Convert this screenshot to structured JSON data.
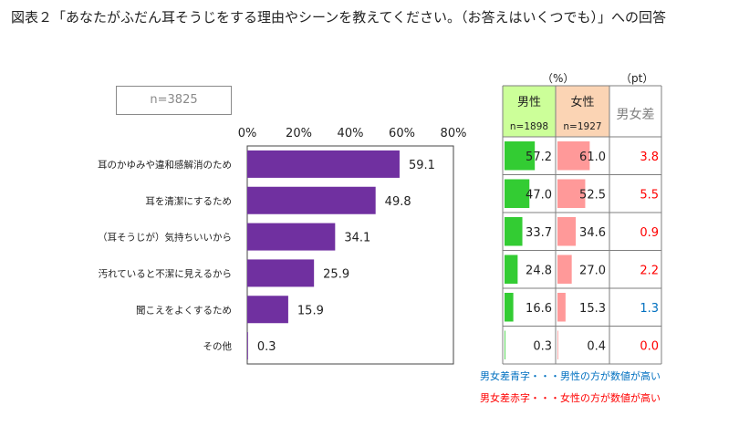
{
  "page_title": "図表２「あなたがふだん耳そうじをする理由やシーンを教えてください。（お答えはいくつでも）」への回答",
  "sample_size": "n=3825",
  "colors": {
    "bar": "#7030a0",
    "male_header": "#ccff99",
    "female_header": "#fbd4b4",
    "male_bar": "#33cc33",
    "female_bar": "#ff9999",
    "diff_red": "#ff0000",
    "diff_blue": "#0070c0"
  },
  "chart_data": {
    "type": "bar",
    "orientation": "horizontal",
    "categories": [
      "耳のかゆみや違和感解消のため",
      "耳を清潔にするため",
      "（耳そうじが）気持ちいいから",
      "汚れていると不潔に見えるから",
      "聞こえをよくするため",
      "その他"
    ],
    "values": [
      59.1,
      49.8,
      34.1,
      25.9,
      15.9,
      0.3
    ],
    "xlim": [
      0,
      80
    ],
    "ticks": [
      "0%",
      "20%",
      "40%",
      "60%",
      "80%"
    ],
    "tick_values": [
      0,
      20,
      40,
      60,
      80
    ]
  },
  "table": {
    "unit_pct": "（%）",
    "unit_pt": "（pt）",
    "male_label": "男性",
    "female_label": "女性",
    "diff_label": "男女差",
    "male_n": "n=1898",
    "female_n": "n=1927",
    "rows": [
      {
        "male": 57.2,
        "female": 61.0,
        "male_text": "57.2",
        "female_text": "61.0",
        "diff_text": "3.8",
        "diff_color": "red"
      },
      {
        "male": 47.0,
        "female": 52.5,
        "male_text": "47.0",
        "female_text": "52.5",
        "diff_text": "5.5",
        "diff_color": "red"
      },
      {
        "male": 33.7,
        "female": 34.6,
        "male_text": "33.7",
        "female_text": "34.6",
        "diff_text": "0.9",
        "diff_color": "red"
      },
      {
        "male": 24.8,
        "female": 27.0,
        "male_text": "24.8",
        "female_text": "27.0",
        "diff_text": "2.2",
        "diff_color": "red"
      },
      {
        "male": 16.6,
        "female": 15.3,
        "male_text": "16.6",
        "female_text": "15.3",
        "diff_text": "1.3",
        "diff_color": "blue"
      },
      {
        "male": 0.3,
        "female": 0.4,
        "male_text": "0.3",
        "female_text": "0.4",
        "diff_text": "0.0",
        "diff_color": "red"
      }
    ]
  },
  "notes": {
    "blue": "男女差青字・・・男性の方が数値が高い",
    "red": "男女差赤字・・・女性の方が数値が高い"
  }
}
